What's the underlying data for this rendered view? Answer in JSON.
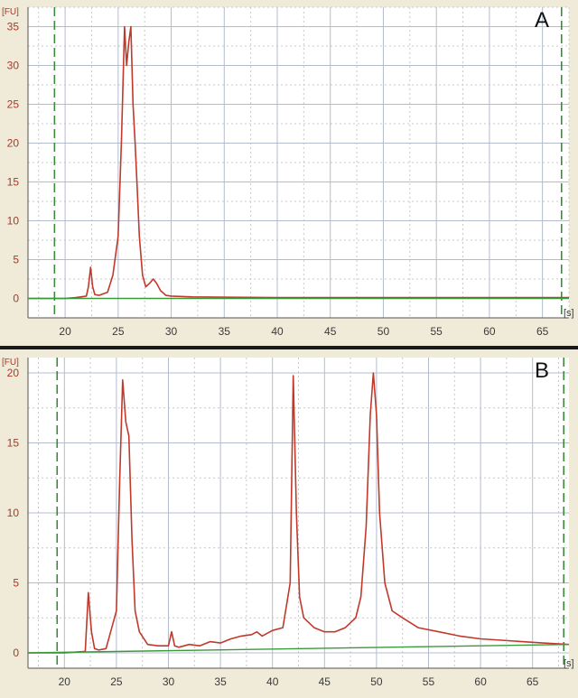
{
  "chart_data": [
    {
      "type": "line",
      "panel_label": "A",
      "y_unit": "[FU]",
      "x_unit": "[s]",
      "xlim": [
        16.5,
        67.5
      ],
      "ylim": [
        -2.5,
        37.5
      ],
      "x_ticks": [
        20,
        25,
        30,
        35,
        40,
        45,
        50,
        55,
        60,
        65
      ],
      "y_ticks": [
        0,
        5,
        10,
        15,
        20,
        25,
        30,
        35
      ],
      "grid": true,
      "markers": [
        19,
        66.8
      ],
      "series": [
        {
          "color": "#c0392b",
          "x": [
            16.5,
            20,
            21,
            22,
            22.2,
            22.4,
            22.6,
            22.8,
            23.2,
            24,
            24.5,
            25,
            25.3,
            25.6,
            25.8,
            26.0,
            26.2,
            26.4,
            26.6,
            26.8,
            27.0,
            27.3,
            27.6,
            28.0,
            28.3,
            28.6,
            29.0,
            29.5,
            30,
            32,
            40,
            55,
            67.5
          ],
          "y": [
            0,
            0,
            0.1,
            0.3,
            1.5,
            4,
            1.5,
            0.5,
            0.4,
            0.8,
            3,
            8,
            20,
            35,
            30,
            33,
            35,
            25,
            20,
            14,
            8,
            3,
            1.5,
            2,
            2.5,
            2,
            1,
            0.4,
            0.3,
            0.2,
            0.1,
            0.1,
            0.1
          ]
        },
        {
          "color": "#3a9a3a",
          "x": [
            16.5,
            67.5
          ],
          "y": [
            0,
            0
          ]
        }
      ]
    },
    {
      "type": "line",
      "panel_label": "B",
      "y_unit": "[FU]",
      "x_unit": "[s]",
      "xlim": [
        16.5,
        68.5
      ],
      "ylim": [
        -1.1,
        21.1
      ],
      "x_ticks": [
        20,
        25,
        30,
        35,
        40,
        45,
        50,
        55,
        60,
        65
      ],
      "y_ticks": [
        0,
        5,
        10,
        15,
        20
      ],
      "grid": true,
      "markers": [
        19.3,
        68
      ],
      "series": [
        {
          "color": "#c0392b",
          "x": [
            16.5,
            20,
            22,
            22.3,
            22.6,
            22.9,
            23.3,
            24,
            25,
            25.3,
            25.6,
            25.9,
            26.2,
            26.5,
            26.8,
            27.2,
            28,
            29,
            30,
            30.3,
            30.6,
            31,
            32,
            33,
            34,
            35,
            36,
            37,
            38,
            38.5,
            39,
            40,
            41,
            41.7,
            42,
            42.3,
            42.6,
            43,
            44,
            45,
            46,
            47,
            48,
            48.5,
            49,
            49.4,
            49.7,
            50,
            50.3,
            50.8,
            51.5,
            52.5,
            54,
            56,
            58,
            60,
            62,
            64,
            66,
            68.5
          ],
          "y": [
            0,
            0,
            0.1,
            4.3,
            1.5,
            0.3,
            0.2,
            0.3,
            3,
            12,
            19.5,
            16.5,
            15.5,
            8,
            3,
            1.5,
            0.6,
            0.5,
            0.5,
            1.5,
            0.5,
            0.4,
            0.6,
            0.5,
            0.8,
            0.7,
            1,
            1.2,
            1.3,
            1.5,
            1.2,
            1.6,
            1.8,
            5,
            19.8,
            10,
            4,
            2.5,
            1.8,
            1.5,
            1.5,
            1.8,
            2.5,
            4,
            9,
            17,
            20,
            17,
            10,
            5,
            3,
            2.5,
            1.8,
            1.5,
            1.2,
            1,
            0.9,
            0.8,
            0.7,
            0.6
          ]
        },
        {
          "color": "#3a9a3a",
          "x": [
            16.5,
            68.5
          ],
          "y": [
            0,
            0.6
          ]
        }
      ]
    }
  ]
}
